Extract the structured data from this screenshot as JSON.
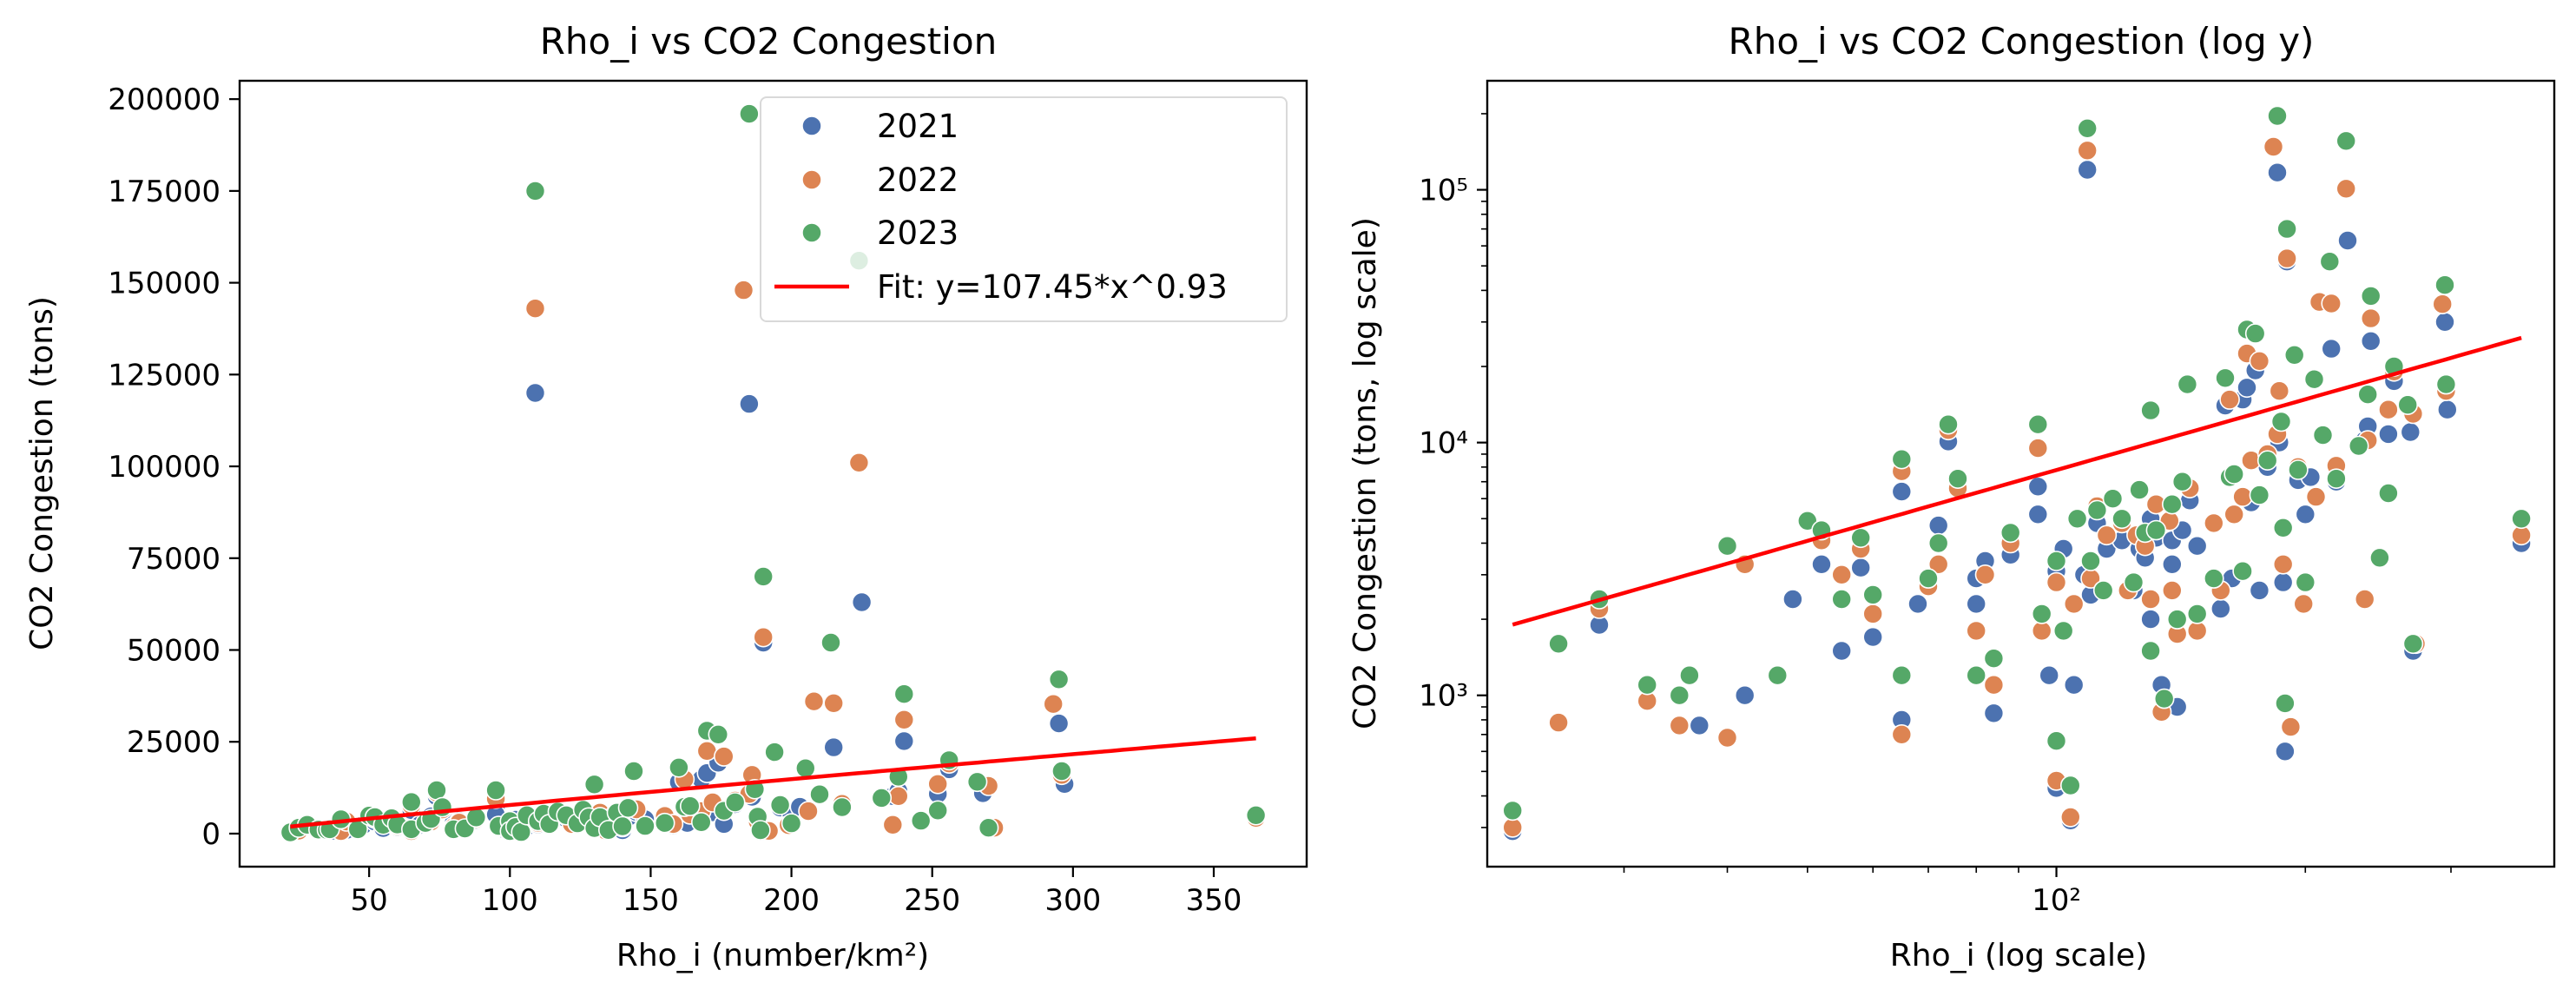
{
  "colors": {
    "2021": "#4c72b0",
    "2022": "#dd8452",
    "2023": "#55a868",
    "fit": "#ff0000"
  },
  "chart_data": [
    {
      "type": "scatter",
      "title": "Rho_i vs CO2 Congestion",
      "xlabel": "Rho_i (number/km²)",
      "ylabel": "CO2 Congestion (tons)",
      "xlim": [
        4,
        383
      ],
      "ylim": [
        -9000,
        205000
      ],
      "x_scale": "linear",
      "y_scale": "linear",
      "xticks": [
        50,
        100,
        150,
        200,
        250,
        300,
        350
      ],
      "xtick_labels": [
        "50",
        "100",
        "150",
        "200",
        "250",
        "300",
        "350"
      ],
      "yticks": [
        0,
        25000,
        50000,
        75000,
        100000,
        125000,
        150000,
        175000,
        200000
      ],
      "ytick_labels": [
        "0",
        "25000",
        "50000",
        "75000",
        "100000",
        "125000",
        "150000",
        "175000",
        "200000"
      ],
      "grid": false,
      "legend": {
        "position": "top-right",
        "entries": [
          "2021",
          "2022",
          "2023",
          "Fit: y=107.45*x^0.93"
        ]
      }
    },
    {
      "type": "scatter",
      "title": "Rho_i vs CO2 Congestion (log y)",
      "xlabel": "Rho_i (log scale)",
      "ylabel": "CO2 Congestion (tons, log scale)",
      "xlim": [
        20.5,
        400
      ],
      "ylim": [
        210,
        270000
      ],
      "x_scale": "log",
      "y_scale": "log",
      "xticks": [
        100
      ],
      "xtick_labels": [
        "10²"
      ],
      "yticks": [
        1000,
        10000,
        100000
      ],
      "ytick_labels": [
        "10³",
        "10⁴",
        "10⁵"
      ],
      "grid": false
    }
  ],
  "series": [
    {
      "name": "2021",
      "points": [
        [
          22,
          290
        ],
        [
          28,
          1900
        ],
        [
          37,
          760
        ],
        [
          42,
          1000
        ],
        [
          48,
          2400
        ],
        [
          52,
          3300
        ],
        [
          55,
          1500
        ],
        [
          58,
          3200
        ],
        [
          60,
          1700
        ],
        [
          65,
          800
        ],
        [
          65,
          6400
        ],
        [
          68,
          2300
        ],
        [
          72,
          4700
        ],
        [
          74,
          10100
        ],
        [
          80,
          2300
        ],
        [
          80,
          2900
        ],
        [
          82,
          3400
        ],
        [
          84,
          850
        ],
        [
          88,
          3600
        ],
        [
          95,
          6700
        ],
        [
          95,
          5200
        ],
        [
          98,
          1200
        ],
        [
          100,
          3100
        ],
        [
          100,
          430
        ],
        [
          102,
          3800
        ],
        [
          104,
          320
        ],
        [
          105,
          1100
        ],
        [
          108,
          3000
        ],
        [
          109,
          120000
        ],
        [
          110,
          2500
        ],
        [
          112,
          4800
        ],
        [
          115,
          3800
        ],
        [
          120,
          4100
        ],
        [
          124,
          2600
        ],
        [
          126,
          3800
        ],
        [
          128,
          3500
        ],
        [
          130,
          2000
        ],
        [
          130,
          5000
        ],
        [
          132,
          4200
        ],
        [
          134,
          1100
        ],
        [
          138,
          3300
        ],
        [
          138,
          4100
        ],
        [
          140,
          900
        ],
        [
          142,
          4500
        ],
        [
          145,
          5900
        ],
        [
          148,
          3900
        ],
        [
          158,
          2200
        ],
        [
          160,
          14000
        ],
        [
          163,
          2900
        ],
        [
          168,
          14800
        ],
        [
          170,
          16500
        ],
        [
          172,
          5800
        ],
        [
          174,
          19300
        ],
        [
          176,
          2600
        ],
        [
          180,
          8000
        ],
        [
          185,
          117000
        ],
        [
          186,
          10000
        ],
        [
          188,
          2800
        ],
        [
          189,
          600
        ],
        [
          190,
          52000
        ],
        [
          196,
          7100
        ],
        [
          200,
          5200
        ],
        [
          203,
          7300
        ],
        [
          215,
          23500
        ],
        [
          218,
          7000
        ],
        [
          225,
          63000
        ],
        [
          236,
          10200
        ],
        [
          238,
          11600
        ],
        [
          240,
          25200
        ],
        [
          252,
          10800
        ],
        [
          256,
          17500
        ],
        [
          268,
          11000
        ],
        [
          270,
          1500
        ],
        [
          295,
          30000
        ],
        [
          297,
          13500
        ],
        [
          365,
          4000
        ]
      ]
    },
    {
      "name": "2022",
      "points": [
        [
          22,
          300
        ],
        [
          25,
          780
        ],
        [
          28,
          2200
        ],
        [
          32,
          950
        ],
        [
          35,
          760
        ],
        [
          40,
          680
        ],
        [
          42,
          3300
        ],
        [
          52,
          4100
        ],
        [
          55,
          3000
        ],
        [
          58,
          3800
        ],
        [
          60,
          2100
        ],
        [
          65,
          700
        ],
        [
          65,
          7700
        ],
        [
          70,
          2700
        ],
        [
          72,
          3300
        ],
        [
          74,
          11200
        ],
        [
          76,
          6600
        ],
        [
          80,
          1800
        ],
        [
          82,
          3000
        ],
        [
          84,
          1100
        ],
        [
          88,
          4000
        ],
        [
          95,
          9500
        ],
        [
          96,
          1800
        ],
        [
          100,
          2800
        ],
        [
          100,
          460
        ],
        [
          104,
          330
        ],
        [
          105,
          2300
        ],
        [
          109,
          143000
        ],
        [
          110,
          2900
        ],
        [
          112,
          5600
        ],
        [
          115,
          4300
        ],
        [
          120,
          4800
        ],
        [
          122,
          2600
        ],
        [
          125,
          4300
        ],
        [
          128,
          3900
        ],
        [
          130,
          2400
        ],
        [
          132,
          5700
        ],
        [
          134,
          860
        ],
        [
          137,
          4900
        ],
        [
          138,
          2600
        ],
        [
          140,
          1750
        ],
        [
          145,
          6600
        ],
        [
          148,
          1800
        ],
        [
          155,
          4800
        ],
        [
          158,
          2600
        ],
        [
          162,
          14800
        ],
        [
          164,
          5200
        ],
        [
          168,
          6100
        ],
        [
          170,
          22500
        ],
        [
          172,
          8500
        ],
        [
          176,
          21000
        ],
        [
          180,
          9000
        ],
        [
          183,
          148000
        ],
        [
          185,
          10800
        ],
        [
          186,
          16000
        ],
        [
          188,
          3300
        ],
        [
          190,
          53500
        ],
        [
          192,
          750
        ],
        [
          196,
          8000
        ],
        [
          199,
          2300
        ],
        [
          206,
          6100
        ],
        [
          208,
          36000
        ],
        [
          215,
          35500
        ],
        [
          218,
          8100
        ],
        [
          224,
          101000
        ],
        [
          236,
          2400
        ],
        [
          238,
          10200
        ],
        [
          240,
          31000
        ],
        [
          252,
          13500
        ],
        [
          256,
          19100
        ],
        [
          270,
          13000
        ],
        [
          272,
          1600
        ],
        [
          293,
          35300
        ],
        [
          296,
          16000
        ],
        [
          365,
          4300
        ]
      ]
    },
    {
      "name": "2023",
      "points": [
        [
          22,
          350
        ],
        [
          25,
          1600
        ],
        [
          28,
          2400
        ],
        [
          32,
          1100
        ],
        [
          35,
          1000
        ],
        [
          36,
          1200
        ],
        [
          40,
          3900
        ],
        [
          46,
          1200
        ],
        [
          50,
          4900
        ],
        [
          52,
          4500
        ],
        [
          55,
          2400
        ],
        [
          58,
          4200
        ],
        [
          60,
          2500
        ],
        [
          65,
          1200
        ],
        [
          65,
          8600
        ],
        [
          70,
          2900
        ],
        [
          72,
          4000
        ],
        [
          74,
          11800
        ],
        [
          76,
          7200
        ],
        [
          80,
          1200
        ],
        [
          84,
          1400
        ],
        [
          88,
          4400
        ],
        [
          95,
          11800
        ],
        [
          96,
          2100
        ],
        [
          100,
          3400
        ],
        [
          100,
          660
        ],
        [
          102,
          1800
        ],
        [
          104,
          440
        ],
        [
          106,
          5000
        ],
        [
          109,
          175000
        ],
        [
          110,
          3400
        ],
        [
          112,
          5400
        ],
        [
          114,
          2600
        ],
        [
          117,
          6000
        ],
        [
          120,
          5000
        ],
        [
          124,
          2800
        ],
        [
          126,
          6500
        ],
        [
          128,
          4400
        ],
        [
          130,
          1500
        ],
        [
          130,
          13400
        ],
        [
          132,
          4500
        ],
        [
          135,
          970
        ],
        [
          138,
          5700
        ],
        [
          140,
          2000
        ],
        [
          142,
          7000
        ],
        [
          144,
          17000
        ],
        [
          148,
          2100
        ],
        [
          155,
          2900
        ],
        [
          160,
          18000
        ],
        [
          162,
          7300
        ],
        [
          164,
          7500
        ],
        [
          168,
          3100
        ],
        [
          170,
          28000
        ],
        [
          174,
          27000
        ],
        [
          176,
          6200
        ],
        [
          180,
          8500
        ],
        [
          185,
          196000
        ],
        [
          187,
          12100
        ],
        [
          188,
          4600
        ],
        [
          189,
          930
        ],
        [
          190,
          70000
        ],
        [
          194,
          22200
        ],
        [
          196,
          7800
        ],
        [
          200,
          2800
        ],
        [
          205,
          17800
        ],
        [
          210,
          10700
        ],
        [
          214,
          52000
        ],
        [
          218,
          7200
        ],
        [
          224,
          156000
        ],
        [
          232,
          9700
        ],
        [
          238,
          15500
        ],
        [
          240,
          38000
        ],
        [
          246,
          3500
        ],
        [
          252,
          6300
        ],
        [
          256,
          20000
        ],
        [
          266,
          14100
        ],
        [
          270,
          1600
        ],
        [
          295,
          42000
        ],
        [
          296,
          17000
        ],
        [
          365,
          5000
        ]
      ]
    }
  ],
  "fit": {
    "a": 107.45,
    "b": 0.93,
    "x_range": [
      22,
      365
    ],
    "label": "Fit: y=107.45*x^0.93"
  }
}
